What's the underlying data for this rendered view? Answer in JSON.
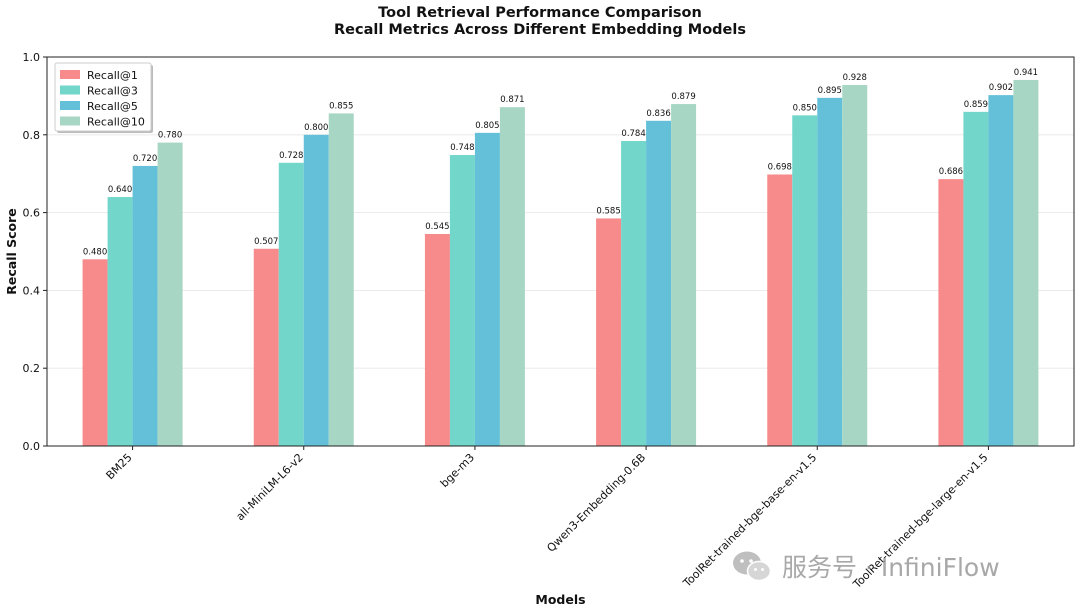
{
  "chart_data": {
    "type": "bar",
    "title": "Tool Retrieval Performance Comparison",
    "subtitle": "Recall Metrics Across Different Embedding Models",
    "xlabel": "Models",
    "ylabel": "Recall Score",
    "ylim": [
      0,
      1.0
    ],
    "yticks": [
      "0.0",
      "0.2",
      "0.4",
      "0.6",
      "0.8",
      "1.0"
    ],
    "grid": true,
    "legend_position": "top-left",
    "categories": [
      "BM25",
      "all-MiniLM-L6-v2",
      "bge-m3",
      "Qwen3-Embedding-0.6B",
      "ToolRet-trained-bge-base-en-v1.5",
      "ToolRet-trained-bge-large-en-v1.5"
    ],
    "series": [
      {
        "name": "Recall@1",
        "color": "#f78a8a",
        "values": [
          0.48,
          0.507,
          0.545,
          0.585,
          0.698,
          0.686
        ]
      },
      {
        "name": "Recall@3",
        "color": "#72d6cb",
        "values": [
          0.64,
          0.728,
          0.748,
          0.784,
          0.85,
          0.859
        ]
      },
      {
        "name": "Recall@5",
        "color": "#64c0d8",
        "values": [
          0.72,
          0.8,
          0.805,
          0.836,
          0.895,
          0.902
        ]
      },
      {
        "name": "Recall@10",
        "color": "#a7d7c4",
        "values": [
          0.78,
          0.855,
          0.871,
          0.879,
          0.928,
          0.941
        ]
      }
    ]
  },
  "watermark": {
    "text": "服务号 · InfiniFlow"
  }
}
